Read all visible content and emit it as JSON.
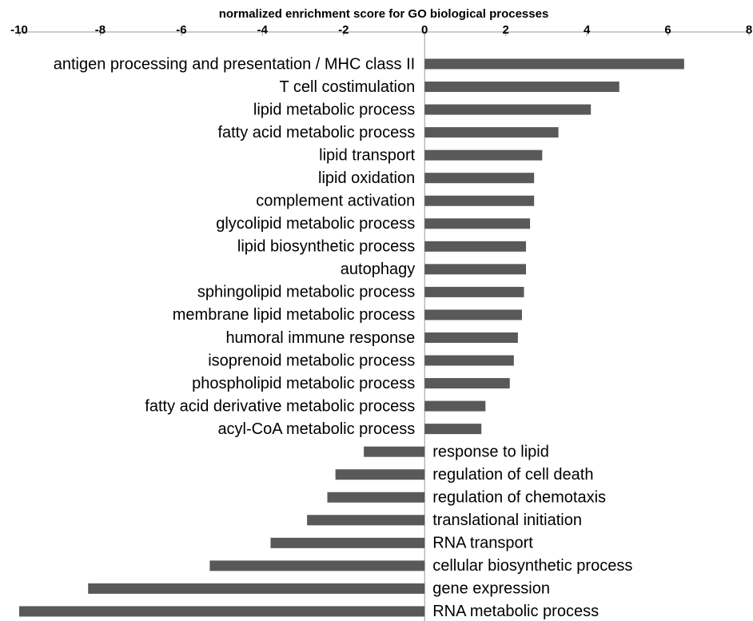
{
  "chart_data": {
    "type": "bar",
    "title": "normalized enrichment score for GO biological processes",
    "categories": [
      "antigen processing and presentation / MHC class II",
      "T cell costimulation",
      "lipid metabolic process",
      "fatty acid metabolic process",
      "lipid transport",
      "lipid oxidation",
      "complement activation",
      "glycolipid metabolic process",
      "lipid biosynthetic process",
      "autophagy",
      "sphingolipid metabolic process",
      "membrane lipid metabolic process",
      "humoral immune response",
      "isoprenoid metabolic process",
      "phospholipid metabolic process",
      "fatty acid derivative metabolic process",
      "acyl-CoA metabolic process",
      "response to lipid",
      "regulation of cell death",
      "regulation of chemotaxis",
      "translational initiation",
      "RNA transport",
      "cellular biosynthetic process",
      "gene expression",
      "RNA metabolic process"
    ],
    "values": [
      6.4,
      4.8,
      4.1,
      3.3,
      2.9,
      2.7,
      2.7,
      2.6,
      2.5,
      2.5,
      2.45,
      2.4,
      2.3,
      2.2,
      2.1,
      1.5,
      1.4,
      -1.5,
      -2.2,
      -2.4,
      -2.9,
      -3.8,
      -5.3,
      -8.3,
      -10
    ],
    "color": "#595959",
    "xlim": [
      -10,
      8
    ],
    "xticks": [
      -10,
      -8,
      -6,
      -4,
      -2,
      0,
      2,
      4,
      6,
      8
    ]
  }
}
